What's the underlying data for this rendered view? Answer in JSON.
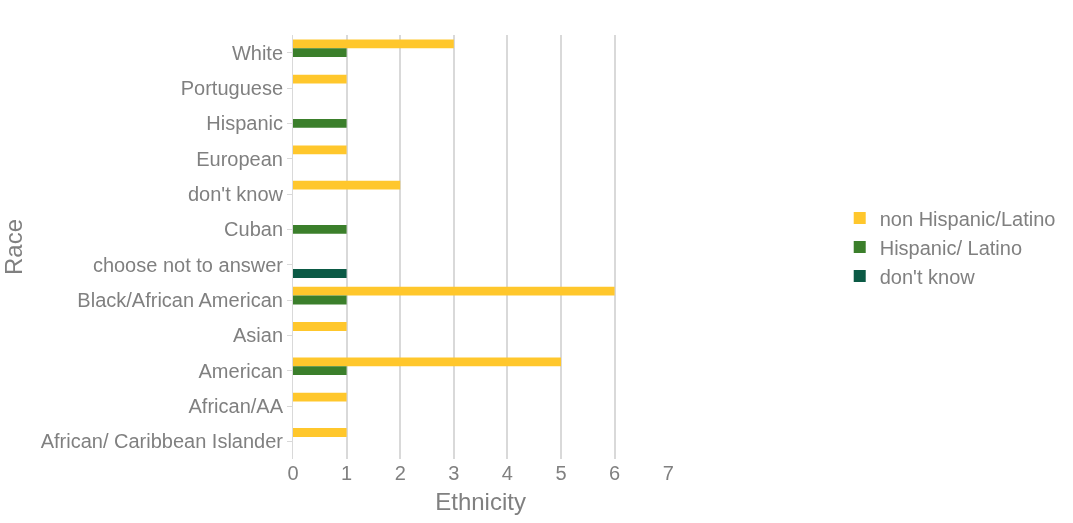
{
  "chart_data": {
    "type": "bar",
    "orientation": "horizontal",
    "xlabel": "Ethnicity",
    "ylabel": "Race",
    "categories": [
      "White",
      "Portuguese",
      "Hispanic",
      "European",
      "don't know",
      "Cuban",
      "choose not to answer",
      "Black/African American",
      "Asian",
      "American",
      "African/AA",
      "African/ Caribbean Islander"
    ],
    "series": [
      {
        "name": "non Hispanic/Latino",
        "color": "#ffc72c",
        "values": [
          3,
          1,
          null,
          1,
          2,
          null,
          null,
          6,
          1,
          5,
          1,
          1
        ]
      },
      {
        "name": "Hispanic/ Latino",
        "color": "#3b7f2b",
        "values": [
          1,
          null,
          1,
          null,
          null,
          1,
          null,
          1,
          null,
          1,
          null,
          null
        ]
      },
      {
        "name": "don't know",
        "color": "#0b5a45",
        "values": [
          null,
          null,
          null,
          null,
          null,
          null,
          1,
          null,
          null,
          null,
          null,
          null
        ]
      }
    ],
    "xlim": [
      0,
      7
    ],
    "xticks": [
      0,
      1,
      2,
      3,
      4,
      5,
      6,
      7
    ],
    "grid": "x",
    "legend": "right"
  }
}
